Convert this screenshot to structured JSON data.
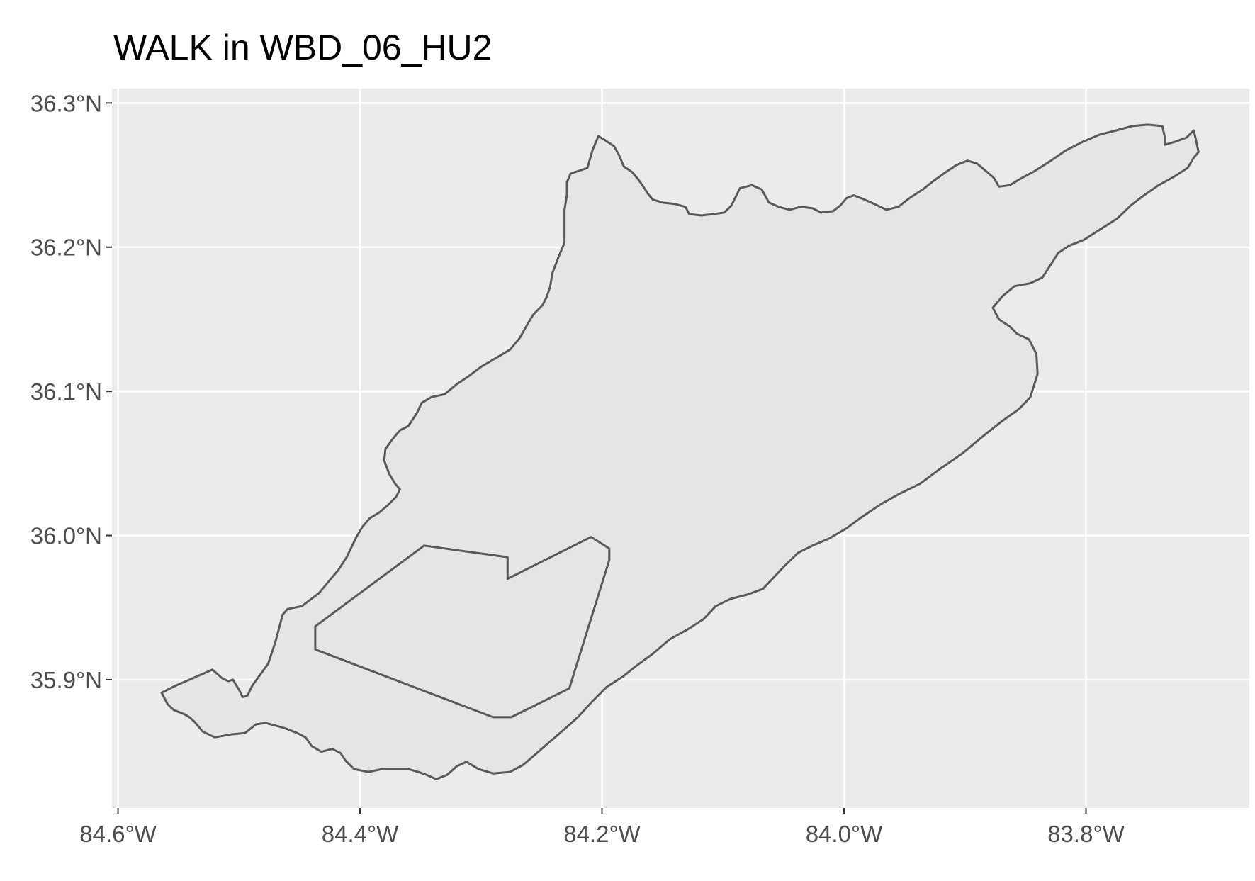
{
  "title": "WALK in WBD_06_HU2",
  "map": {
    "x_axis": {
      "ticks": [
        {
          "value": -84.6,
          "label": "84.6°W"
        },
        {
          "value": -84.4,
          "label": "84.4°W"
        },
        {
          "value": -84.2,
          "label": "84.2°W"
        },
        {
          "value": -84.0,
          "label": "84.0°W"
        },
        {
          "value": -83.8,
          "label": "83.8°W"
        }
      ],
      "range": [
        -84.605,
        -83.665
      ]
    },
    "y_axis": {
      "ticks": [
        {
          "value": 35.9,
          "label": "35.9°N"
        },
        {
          "value": 36.0,
          "label": "36.0°N"
        },
        {
          "value": 36.1,
          "label": "36.1°N"
        },
        {
          "value": 36.2,
          "label": "36.2°N"
        },
        {
          "value": 36.3,
          "label": "36.3°N"
        }
      ],
      "range": [
        35.811,
        36.31
      ]
    },
    "colors": {
      "panel_background": "#ebebeb",
      "grid": "#ffffff",
      "polygon_fill": "#e5e5e5",
      "polygon_stroke": "#595959"
    },
    "watershed_outline": [
      [
        -84.564,
        35.891
      ],
      [
        -84.552,
        35.896
      ],
      [
        -84.53,
        35.904
      ],
      [
        -84.522,
        35.907
      ],
      [
        -84.514,
        35.901
      ],
      [
        -84.509,
        35.899
      ],
      [
        -84.505,
        35.9
      ],
      [
        -84.5,
        35.893
      ],
      [
        -84.497,
        35.888
      ],
      [
        -84.493,
        35.889
      ],
      [
        -84.489,
        35.896
      ],
      [
        -84.476,
        35.911
      ],
      [
        -84.47,
        35.926
      ],
      [
        -84.464,
        35.945
      ],
      [
        -84.46,
        35.949
      ],
      [
        -84.448,
        35.951
      ],
      [
        -84.445,
        35.953
      ],
      [
        -84.434,
        35.96
      ],
      [
        -84.425,
        35.969
      ],
      [
        -84.418,
        35.976
      ],
      [
        -84.411,
        35.985
      ],
      [
        -84.403,
        35.999
      ],
      [
        -84.398,
        36.006
      ],
      [
        -84.392,
        36.012
      ],
      [
        -84.384,
        36.016
      ],
      [
        -84.377,
        36.021
      ],
      [
        -84.37,
        36.027
      ],
      [
        -84.367,
        36.032
      ],
      [
        -84.371,
        36.036
      ],
      [
        -84.376,
        36.043
      ],
      [
        -84.38,
        36.052
      ],
      [
        -84.379,
        36.06
      ],
      [
        -84.373,
        36.067
      ],
      [
        -84.367,
        36.073
      ],
      [
        -84.36,
        36.076
      ],
      [
        -84.353,
        36.085
      ],
      [
        -84.349,
        36.092
      ],
      [
        -84.341,
        36.096
      ],
      [
        -84.33,
        36.098
      ],
      [
        -84.32,
        36.105
      ],
      [
        -84.311,
        36.11
      ],
      [
        -84.3,
        36.117
      ],
      [
        -84.288,
        36.123
      ],
      [
        -84.276,
        36.129
      ],
      [
        -84.268,
        36.137
      ],
      [
        -84.262,
        36.146
      ],
      [
        -84.257,
        36.153
      ],
      [
        -84.249,
        36.16
      ],
      [
        -84.246,
        36.165
      ],
      [
        -84.243,
        36.172
      ],
      [
        -84.241,
        36.182
      ],
      [
        -84.236,
        36.193
      ],
      [
        -84.231,
        36.203
      ],
      [
        -84.231,
        36.214
      ],
      [
        -84.231,
        36.226
      ],
      [
        -84.229,
        36.236
      ],
      [
        -84.229,
        36.245
      ],
      [
        -84.226,
        36.251
      ],
      [
        -84.212,
        36.255
      ],
      [
        -84.208,
        36.267
      ],
      [
        -84.203,
        36.277
      ],
      [
        -84.197,
        36.274
      ],
      [
        -84.19,
        36.27
      ],
      [
        -84.186,
        36.264
      ],
      [
        -84.182,
        36.256
      ],
      [
        -84.175,
        36.252
      ],
      [
        -84.17,
        36.247
      ],
      [
        -84.165,
        36.241
      ],
      [
        -84.162,
        36.237
      ],
      [
        -84.158,
        36.233
      ],
      [
        -84.15,
        36.231
      ],
      [
        -84.14,
        36.23
      ],
      [
        -84.131,
        36.228
      ],
      [
        -84.128,
        36.223
      ],
      [
        -84.118,
        36.222
      ],
      [
        -84.108,
        36.223
      ],
      [
        -84.099,
        36.224
      ],
      [
        -84.093,
        36.229
      ],
      [
        -84.086,
        36.241
      ],
      [
        -84.076,
        36.243
      ],
      [
        -84.068,
        36.24
      ],
      [
        -84.062,
        36.231
      ],
      [
        -84.054,
        36.228
      ],
      [
        -84.045,
        36.226
      ],
      [
        -84.036,
        36.228
      ],
      [
        -84.026,
        36.227
      ],
      [
        -84.019,
        36.224
      ],
      [
        -84.009,
        36.225
      ],
      [
        -84.003,
        36.229
      ],
      [
        -83.998,
        36.234
      ],
      [
        -83.992,
        36.236
      ],
      [
        -83.983,
        36.233
      ],
      [
        -83.975,
        36.23
      ],
      [
        -83.965,
        36.226
      ],
      [
        -83.955,
        36.228
      ],
      [
        -83.946,
        36.234
      ],
      [
        -83.935,
        36.24
      ],
      [
        -83.926,
        36.246
      ],
      [
        -83.916,
        36.252
      ],
      [
        -83.907,
        36.257
      ],
      [
        -83.898,
        36.26
      ],
      [
        -83.89,
        36.258
      ],
      [
        -83.883,
        36.253
      ],
      [
        -83.876,
        36.248
      ],
      [
        -83.872,
        36.242
      ],
      [
        -83.863,
        36.243
      ],
      [
        -83.853,
        36.248
      ],
      [
        -83.842,
        36.253
      ],
      [
        -83.829,
        36.26
      ],
      [
        -83.817,
        36.267
      ],
      [
        -83.803,
        36.273
      ],
      [
        -83.789,
        36.278
      ],
      [
        -83.775,
        36.281
      ],
      [
        -83.762,
        36.284
      ],
      [
        -83.749,
        36.285
      ],
      [
        -83.737,
        36.284
      ],
      [
        -83.735,
        36.277
      ],
      [
        -83.735,
        36.271
      ],
      [
        -83.727,
        36.273
      ],
      [
        -83.717,
        36.276
      ],
      [
        -83.711,
        36.281
      ],
      [
        -83.709,
        36.274
      ],
      [
        -83.707,
        36.266
      ],
      [
        -83.711,
        36.262
      ],
      [
        -83.716,
        36.255
      ],
      [
        -83.727,
        36.249
      ],
      [
        -83.74,
        36.243
      ],
      [
        -83.752,
        36.236
      ],
      [
        -83.763,
        36.229
      ],
      [
        -83.774,
        36.22
      ],
      [
        -83.787,
        36.213
      ],
      [
        -83.802,
        36.205
      ],
      [
        -83.814,
        36.201
      ],
      [
        -83.823,
        36.196
      ],
      [
        -83.829,
        36.188
      ],
      [
        -83.836,
        36.179
      ],
      [
        -83.846,
        36.175
      ],
      [
        -83.859,
        36.173
      ],
      [
        -83.869,
        36.166
      ],
      [
        -83.877,
        36.158
      ],
      [
        -83.872,
        36.15
      ],
      [
        -83.863,
        36.145
      ],
      [
        -83.857,
        36.14
      ],
      [
        -83.847,
        36.136
      ],
      [
        -83.841,
        36.126
      ],
      [
        -83.84,
        36.112
      ],
      [
        -83.846,
        36.096
      ],
      [
        -83.855,
        36.088
      ],
      [
        -83.87,
        36.079
      ],
      [
        -83.885,
        36.069
      ],
      [
        -83.902,
        36.057
      ],
      [
        -83.921,
        36.046
      ],
      [
        -83.937,
        36.036
      ],
      [
        -83.954,
        36.029
      ],
      [
        -83.969,
        36.022
      ],
      [
        -83.985,
        36.013
      ],
      [
        -83.998,
        36.005
      ],
      [
        -84.012,
        35.998
      ],
      [
        -84.026,
        35.993
      ],
      [
        -84.038,
        35.988
      ],
      [
        -84.049,
        35.979
      ],
      [
        -84.058,
        35.971
      ],
      [
        -84.067,
        35.963
      ],
      [
        -84.08,
        35.959
      ],
      [
        -84.094,
        35.956
      ],
      [
        -84.106,
        35.951
      ],
      [
        -84.116,
        35.942
      ],
      [
        -84.129,
        35.935
      ],
      [
        -84.144,
        35.928
      ],
      [
        -84.158,
        35.918
      ],
      [
        -84.171,
        35.91
      ],
      [
        -84.183,
        35.902
      ],
      [
        -84.196,
        35.895
      ],
      [
        -84.208,
        35.885
      ],
      [
        -84.22,
        35.874
      ],
      [
        -84.232,
        35.865
      ],
      [
        -84.243,
        35.857
      ],
      [
        -84.254,
        35.849
      ],
      [
        -84.265,
        35.841
      ],
      [
        -84.276,
        35.836
      ],
      [
        -84.29,
        35.835
      ],
      [
        -84.302,
        35.838
      ],
      [
        -84.312,
        35.843
      ],
      [
        -84.32,
        35.84
      ],
      [
        -84.328,
        35.834
      ],
      [
        -84.337,
        35.831
      ],
      [
        -84.345,
        35.834
      ],
      [
        -84.352,
        35.836
      ],
      [
        -84.36,
        35.838
      ],
      [
        -84.371,
        35.838
      ],
      [
        -84.382,
        35.838
      ],
      [
        -84.393,
        35.836
      ],
      [
        -84.405,
        35.838
      ],
      [
        -84.412,
        35.844
      ],
      [
        -84.416,
        35.849
      ],
      [
        -84.423,
        35.852
      ],
      [
        -84.432,
        35.85
      ],
      [
        -84.44,
        35.854
      ],
      [
        -84.445,
        35.86
      ],
      [
        -84.452,
        35.863
      ],
      [
        -84.461,
        35.866
      ],
      [
        -84.469,
        35.868
      ],
      [
        -84.478,
        35.87
      ],
      [
        -84.486,
        35.869
      ],
      [
        -84.495,
        35.863
      ],
      [
        -84.507,
        35.862
      ],
      [
        -84.52,
        35.86
      ],
      [
        -84.53,
        35.864
      ],
      [
        -84.537,
        35.871
      ],
      [
        -84.541,
        35.874
      ],
      [
        -84.545,
        35.876
      ],
      [
        -84.554,
        35.879
      ],
      [
        -84.559,
        35.883
      ]
    ],
    "inner_polygon": [
      [
        -84.437,
        35.937
      ],
      [
        -84.347,
        35.993
      ],
      [
        -84.278,
        35.985
      ],
      [
        -84.278,
        35.97
      ],
      [
        -84.209,
        35.999
      ],
      [
        -84.194,
        35.991
      ],
      [
        -84.194,
        35.983
      ],
      [
        -84.227,
        35.894
      ],
      [
        -84.275,
        35.874
      ],
      [
        -84.29,
        35.874
      ],
      [
        -84.437,
        35.921
      ]
    ]
  }
}
